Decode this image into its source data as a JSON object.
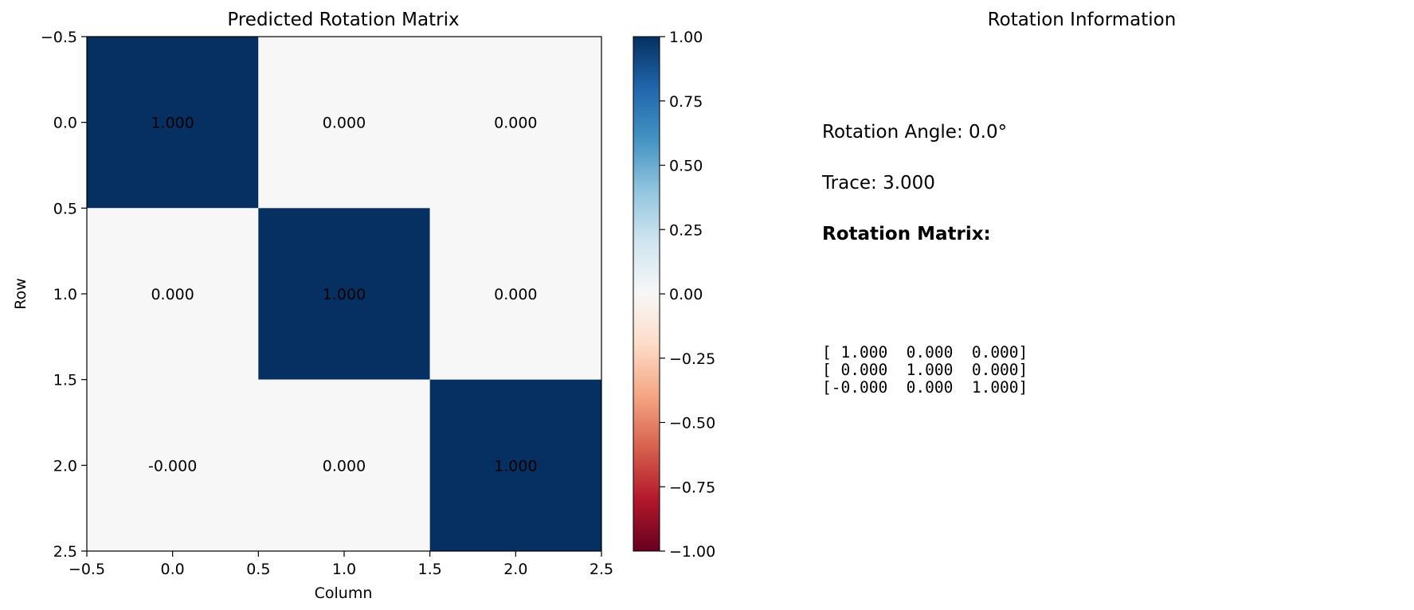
{
  "chart_data": {
    "type": "heatmap",
    "title": "Predicted Rotation Matrix",
    "xlabel": "Column",
    "ylabel": "Row",
    "xlim": [
      -0.5,
      2.5
    ],
    "ylim": [
      2.5,
      -0.5
    ],
    "x_ticks": [
      "−0.5",
      "0.0",
      "0.5",
      "1.0",
      "1.5",
      "2.0",
      "2.5"
    ],
    "y_ticks": [
      "−0.5",
      "0.0",
      "0.5",
      "1.0",
      "1.5",
      "2.0",
      "2.5"
    ],
    "values": [
      [
        1,
        0,
        0
      ],
      [
        0,
        1,
        0
      ],
      [
        -0.0,
        0,
        1
      ]
    ],
    "cell_labels": [
      [
        "1.000",
        "0.000",
        "0.000"
      ],
      [
        "0.000",
        "1.000",
        "0.000"
      ],
      [
        "-0.000",
        "0.000",
        "1.000"
      ]
    ],
    "colorbar": {
      "colormap": "RdBu",
      "range": [
        -1,
        1
      ],
      "ticks": [
        "1.00",
        "0.75",
        "0.50",
        "0.25",
        "0.00",
        "−0.25",
        "−0.50",
        "−0.75",
        "−1.00"
      ],
      "tick_values": [
        1,
        0.75,
        0.5,
        0.25,
        0,
        -0.25,
        -0.5,
        -0.75,
        -1
      ],
      "colors": [
        "#67001f",
        "#b2182b",
        "#d6604d",
        "#f4a582",
        "#fddbc7",
        "#f7f7f7",
        "#d1e5f0",
        "#92c5de",
        "#4393c3",
        "#2166ac",
        "#053061"
      ]
    },
    "grid": false
  },
  "info": {
    "title": "Rotation Information",
    "angle_text": "Rotation Angle: 0.0°",
    "trace_text": "Trace: 3.000",
    "matrix_heading": "Rotation Matrix:",
    "matrix_lines": [
      "[ 1.000  0.000  0.000]",
      "[ 0.000  1.000  0.000]",
      "[-0.000  0.000  1.000]"
    ]
  }
}
